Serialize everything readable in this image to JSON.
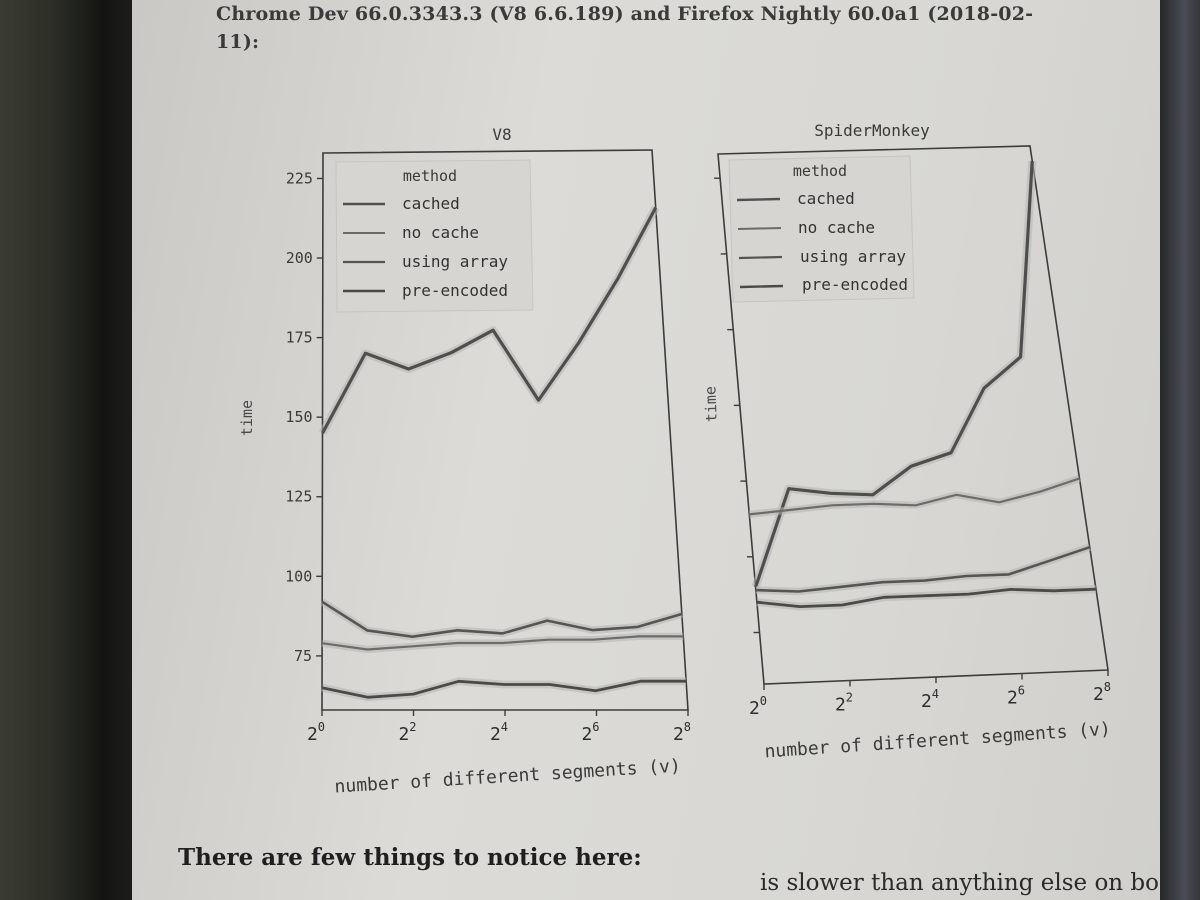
{
  "header": {
    "line1": "Chrome Dev 66.0.3343.3 (V8 6.6.189) and Firefox Nightly 60.0a1 (2018-02-",
    "line2": "11):"
  },
  "footer": {
    "heading": "There are few things to notice here:",
    "partial_line": "is slower than anything else on bo"
  },
  "colors": {
    "page": "#d8d7d3",
    "line": "#505050",
    "band": "#b0b0b0"
  },
  "chart_data": [
    {
      "type": "line",
      "title": "V8",
      "xlabel": "number of different segments (v)",
      "ylabel": "time",
      "x_scale": "log2",
      "x": [
        1,
        2,
        4,
        8,
        16,
        32,
        64,
        128,
        256
      ],
      "x_ticks": [
        {
          "base": "2",
          "exp": "0"
        },
        {
          "base": "2",
          "exp": "2"
        },
        {
          "base": "2",
          "exp": "4"
        },
        {
          "base": "2",
          "exp": "6"
        },
        {
          "base": "2",
          "exp": "8"
        }
      ],
      "y_ticks": [
        "75",
        "100",
        "125",
        "150",
        "175",
        "200",
        "225"
      ],
      "ylim": [
        58,
        233
      ],
      "legend": {
        "title": "method",
        "placement": "top-left",
        "entries": [
          "cached",
          "no cache",
          "using array",
          "pre-encoded"
        ]
      },
      "series": [
        {
          "name": "cached",
          "values": [
            145,
            170,
            165,
            170,
            177,
            155,
            173,
            193,
            215
          ]
        },
        {
          "name": "no cache",
          "values": [
            79,
            77,
            78,
            79,
            79,
            80,
            80,
            81,
            81
          ]
        },
        {
          "name": "using array",
          "values": [
            92,
            83,
            81,
            83,
            82,
            86,
            83,
            84,
            88
          ]
        },
        {
          "name": "pre-encoded",
          "values": [
            65,
            62,
            63,
            67,
            66,
            66,
            64,
            67,
            67
          ]
        }
      ]
    },
    {
      "type": "line",
      "title": "SpiderMonkey",
      "xlabel": "number of different segments (v)",
      "ylabel": "time",
      "x_scale": "log2",
      "x": [
        1,
        2,
        4,
        8,
        16,
        32,
        64,
        128,
        256
      ],
      "x_ticks": [
        {
          "base": "2",
          "exp": "0"
        },
        {
          "base": "2",
          "exp": "2"
        },
        {
          "base": "2",
          "exp": "4"
        },
        {
          "base": "2",
          "exp": "6"
        },
        {
          "base": "2",
          "exp": "8"
        }
      ],
      "y_ticks": [
        "",
        "",
        "",
        "",
        "",
        "",
        ""
      ],
      "ylim": [
        58,
        233
      ],
      "legend": {
        "title": "method",
        "placement": "top-left",
        "entries": [
          "cached",
          "no cache",
          "using array",
          "pre-encoded"
        ]
      },
      "series": [
        {
          "name": "cached",
          "values": [
            90,
            122,
            120,
            119,
            128,
            132,
            153,
            163,
            228
          ]
        },
        {
          "name": "no cache",
          "values": [
            114,
            115,
            116,
            116,
            115,
            118,
            115,
            118,
            122
          ]
        },
        {
          "name": "using array",
          "values": [
            89,
            88,
            89,
            90,
            90,
            91,
            91,
            95,
            99
          ]
        },
        {
          "name": "pre-encoded",
          "values": [
            85,
            83,
            83,
            85,
            85,
            85,
            86,
            85,
            85
          ]
        }
      ]
    }
  ]
}
